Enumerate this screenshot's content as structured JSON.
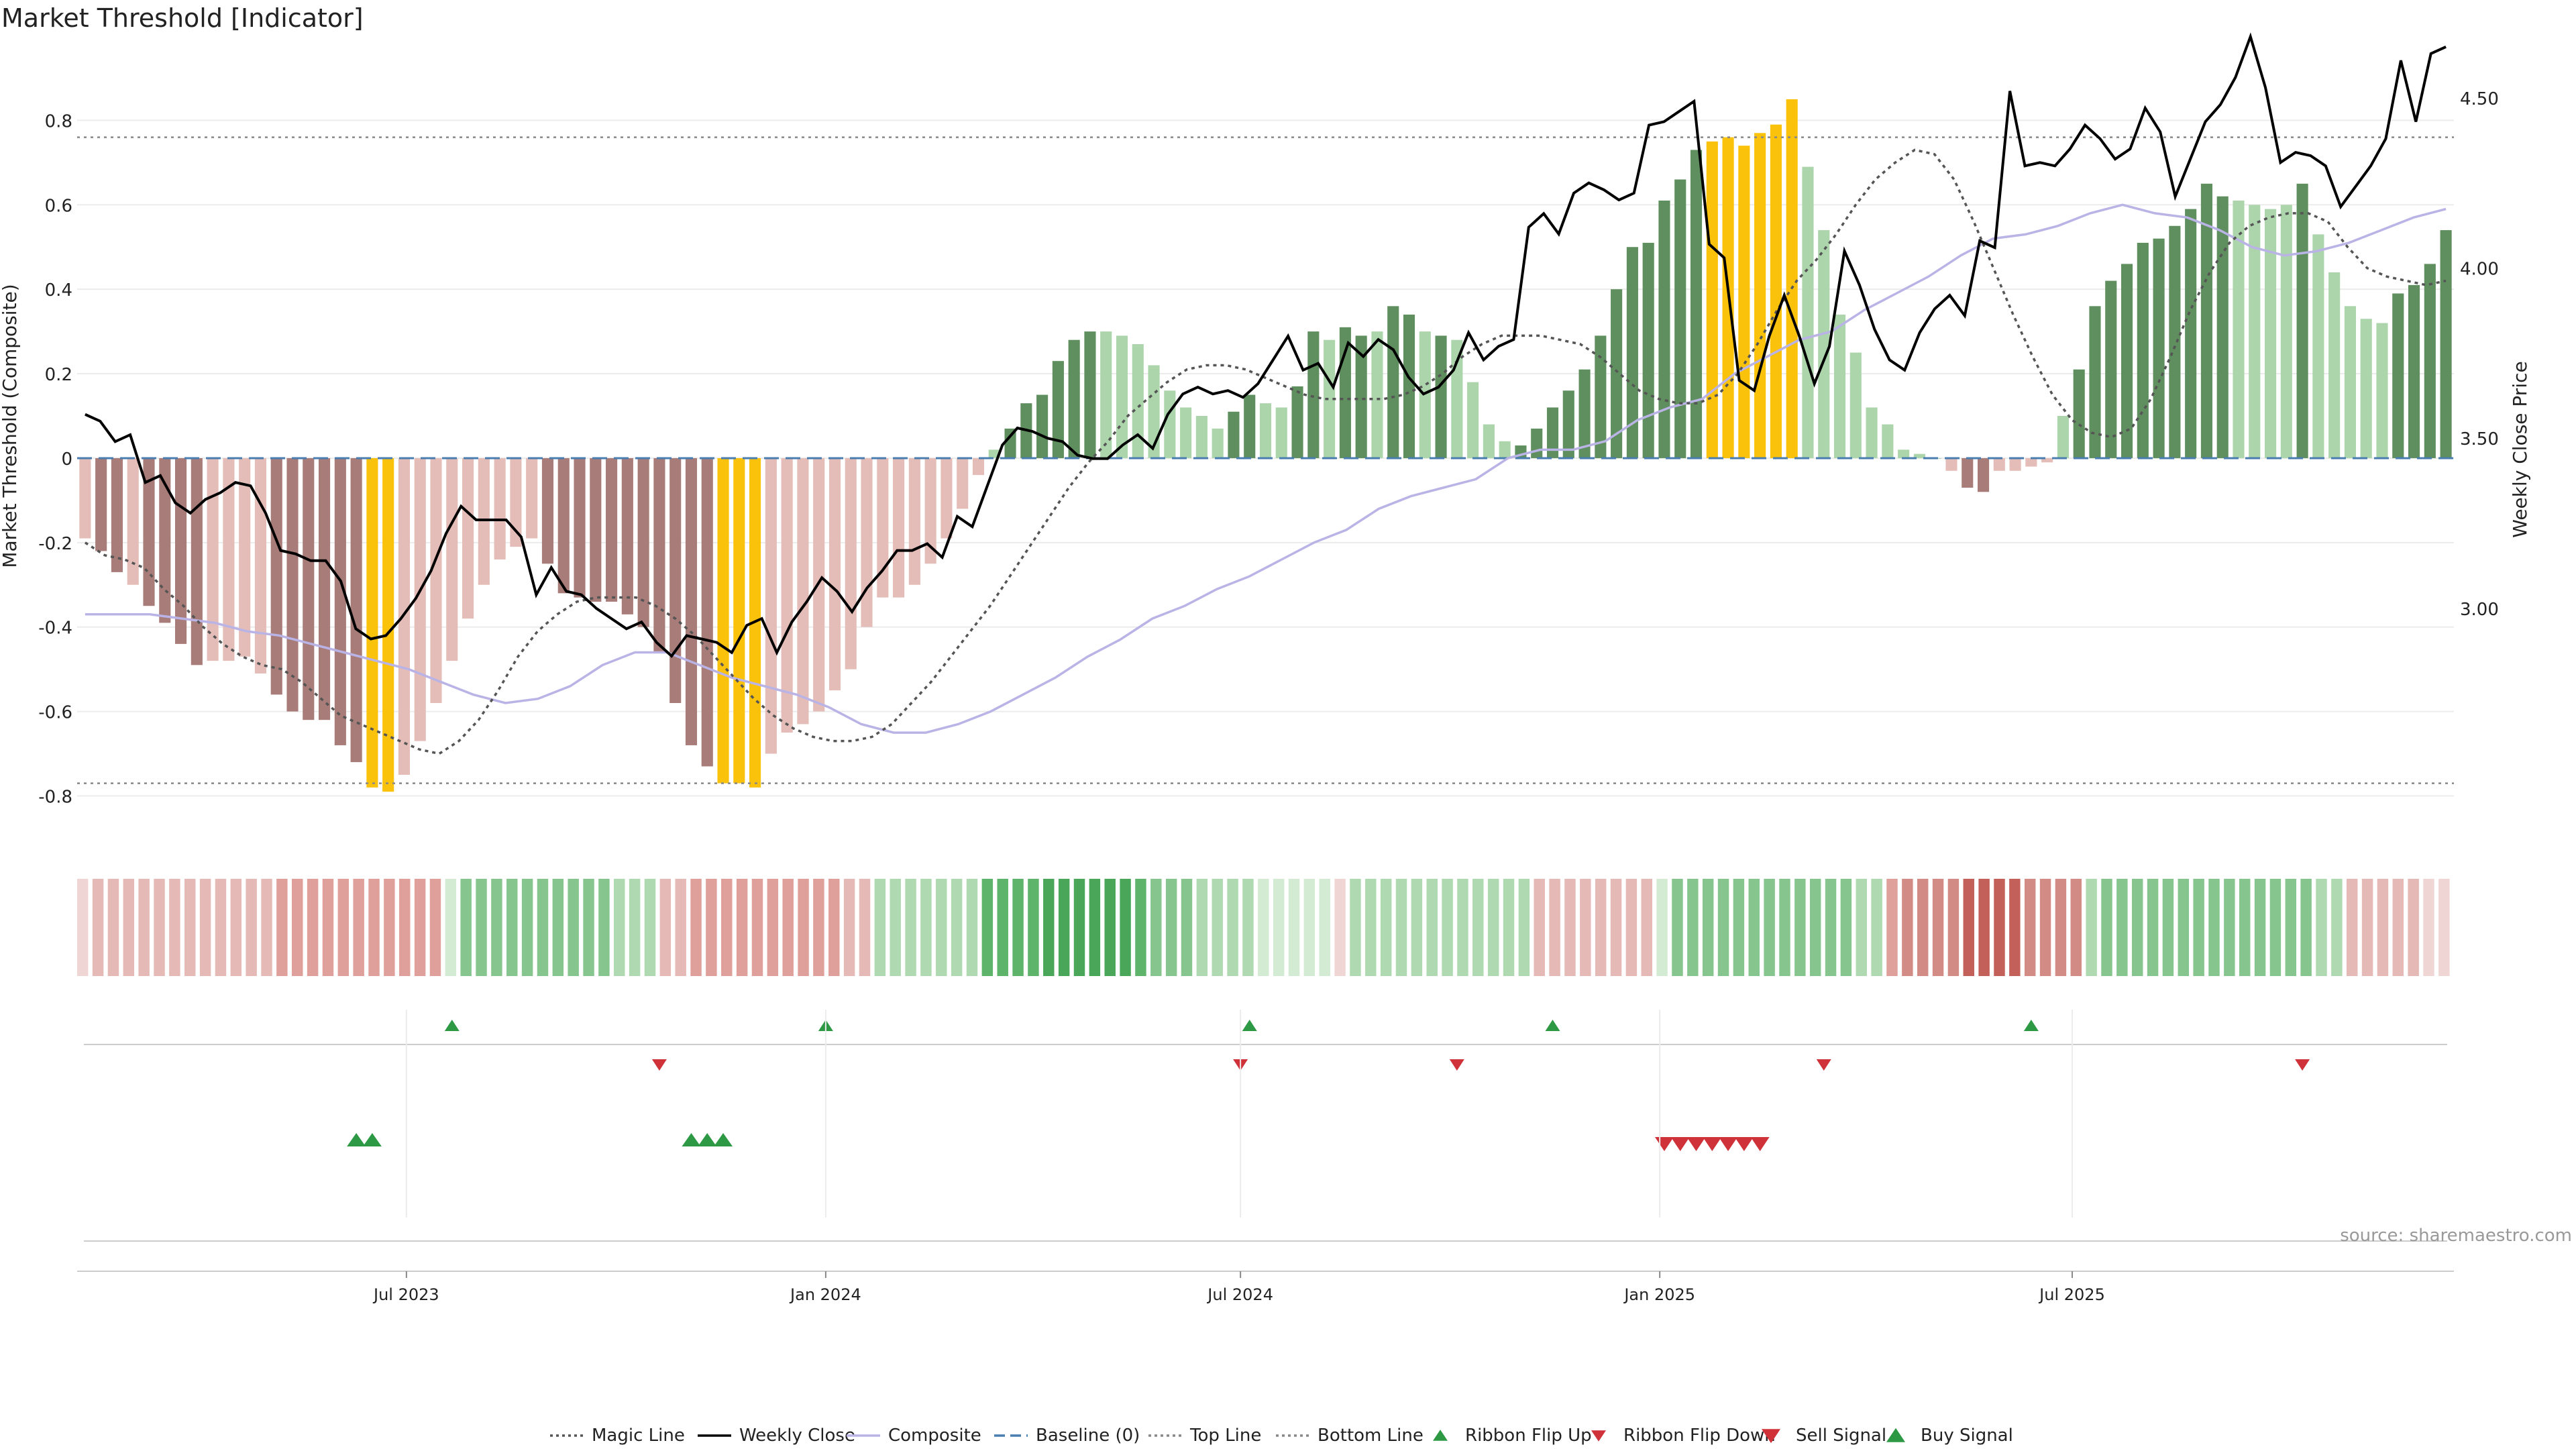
{
  "chart_data": {
    "type": "bar",
    "title": "Market Threshold [Indicator]",
    "ylabel": "Market Threshold (Composite)",
    "y2label": "Weekly Close Price",
    "source": "source: sharemaestro.com",
    "ylim": [
      -0.92,
      0.95
    ],
    "y2lim": [
      2.3,
      4.62
    ],
    "yticks": [
      "-0.8",
      "-0.6",
      "-0.4",
      "-0.2",
      "0",
      "0.2",
      "0.4",
      "0.6",
      "0.8"
    ],
    "y2ticks": [
      "3.00",
      "3.50",
      "4.00",
      "4.50"
    ],
    "xticks": [
      {
        "label": "Jul 2023",
        "date": "2023-07-01"
      },
      {
        "label": "Jan 2024",
        "date": "2024-01-01"
      },
      {
        "label": "Jul 2024",
        "date": "2024-07-01"
      },
      {
        "label": "Jan 2025",
        "date": "2025-01-01"
      },
      {
        "label": "Jul 2025",
        "date": "2025-07-01"
      }
    ],
    "start_date": "2023-02-10",
    "top_line": 0.76,
    "bottom_line": -0.77,
    "baseline": 0,
    "grid": true,
    "legend_position": "bottom",
    "bars": [
      -0.19,
      -0.22,
      -0.27,
      -0.3,
      -0.35,
      -0.39,
      -0.44,
      -0.49,
      -0.48,
      -0.48,
      -0.47,
      -0.51,
      -0.56,
      -0.6,
      -0.62,
      -0.62,
      -0.68,
      -0.72,
      -0.78,
      -0.79,
      -0.75,
      -0.67,
      -0.58,
      -0.48,
      -0.38,
      -0.3,
      -0.24,
      -0.21,
      -0.19,
      -0.25,
      -0.32,
      -0.33,
      -0.34,
      -0.34,
      -0.37,
      -0.4,
      -0.46,
      -0.58,
      -0.68,
      -0.73,
      -0.77,
      -0.77,
      -0.78,
      -0.7,
      -0.65,
      -0.63,
      -0.6,
      -0.55,
      -0.5,
      -0.4,
      -0.33,
      -0.33,
      -0.3,
      -0.25,
      -0.19,
      -0.12,
      -0.04,
      0.02,
      0.07,
      0.13,
      0.15,
      0.23,
      0.28,
      0.3,
      0.3,
      0.29,
      0.27,
      0.22,
      0.16,
      0.12,
      0.1,
      0.07,
      0.11,
      0.15,
      0.13,
      0.12,
      0.17,
      0.3,
      0.28,
      0.31,
      0.29,
      0.3,
      0.36,
      0.34,
      0.3,
      0.29,
      0.28,
      0.18,
      0.08,
      0.04,
      0.03,
      0.07,
      0.12,
      0.16,
      0.21,
      0.29,
      0.4,
      0.5,
      0.51,
      0.61,
      0.66,
      0.73,
      0.75,
      0.76,
      0.74,
      0.77,
      0.79,
      0.85,
      0.69,
      0.54,
      0.34,
      0.25,
      0.12,
      0.08,
      0.02,
      0.01,
      0.0,
      -0.03,
      -0.07,
      -0.08,
      -0.03,
      -0.03,
      -0.02,
      -0.01,
      0.1,
      0.21,
      0.36,
      0.42,
      0.46,
      0.51,
      0.52,
      0.55,
      0.59,
      0.65,
      0.62,
      0.61,
      0.6,
      0.59,
      0.6,
      0.65,
      0.53,
      0.44,
      0.36,
      0.33,
      0.32,
      0.39,
      0.41,
      0.46,
      0.54
    ],
    "bar_colors": [
      "#e5bdb8",
      "#a87c78",
      "#a87c78",
      "#e5bdb8",
      "#a87c78",
      "#a87c78",
      "#a87c78",
      "#a87c78",
      "#e5bdb8",
      "#e5bdb8",
      "#e5bdb8",
      "#e5bdb8",
      "#a87c78",
      "#a87c78",
      "#a87c78",
      "#a87c78",
      "#a87c78",
      "#a87c78",
      "#fac20a",
      "#fac20a",
      "#e5bdb8",
      "#e5bdb8",
      "#e5bdb8",
      "#e5bdb8",
      "#e5bdb8",
      "#e5bdb8",
      "#e5bdb8",
      "#e5bdb8",
      "#e5bdb8",
      "#a87c78",
      "#a87c78",
      "#a87c78",
      "#a87c78",
      "#a87c78",
      "#a87c78",
      "#a87c78",
      "#a87c78",
      "#a87c78",
      "#a87c78",
      "#a87c78",
      "#fac20a",
      "#fac20a",
      "#fac20a",
      "#e5bdb8",
      "#e5bdb8",
      "#e5bdb8",
      "#e5bdb8",
      "#e5bdb8",
      "#e5bdb8",
      "#e5bdb8",
      "#e5bdb8",
      "#e5bdb8",
      "#e5bdb8",
      "#e5bdb8",
      "#e5bdb8",
      "#e5bdb8",
      "#e5bdb8",
      "#acd5ac",
      "#5f8f5f",
      "#5f8f5f",
      "#5f8f5f",
      "#5f8f5f",
      "#5f8f5f",
      "#5f8f5f",
      "#acd5ac",
      "#acd5ac",
      "#acd5ac",
      "#acd5ac",
      "#acd5ac",
      "#acd5ac",
      "#acd5ac",
      "#acd5ac",
      "#5f8f5f",
      "#5f8f5f",
      "#acd5ac",
      "#acd5ac",
      "#5f8f5f",
      "#5f8f5f",
      "#acd5ac",
      "#5f8f5f",
      "#5f8f5f",
      "#acd5ac",
      "#5f8f5f",
      "#5f8f5f",
      "#acd5ac",
      "#5f8f5f",
      "#acd5ac",
      "#acd5ac",
      "#acd5ac",
      "#acd5ac",
      "#5f8f5f",
      "#5f8f5f",
      "#5f8f5f",
      "#5f8f5f",
      "#5f8f5f",
      "#5f8f5f",
      "#5f8f5f",
      "#5f8f5f",
      "#5f8f5f",
      "#5f8f5f",
      "#5f8f5f",
      "#5f8f5f",
      "#fac20a",
      "#fac20a",
      "#fac20a",
      "#fac20a",
      "#fac20a",
      "#fac20a",
      "#acd5ac",
      "#acd5ac",
      "#acd5ac",
      "#acd5ac",
      "#acd5ac",
      "#acd5ac",
      "#acd5ac",
      "#acd5ac",
      "#acd5ac",
      "#e5bdb8",
      "#a87c78",
      "#a87c78",
      "#e5bdb8",
      "#e5bdb8",
      "#e5bdb8",
      "#e5bdb8",
      "#acd5ac",
      "#5f8f5f",
      "#5f8f5f",
      "#5f8f5f",
      "#5f8f5f",
      "#5f8f5f",
      "#5f8f5f",
      "#5f8f5f",
      "#5f8f5f",
      "#5f8f5f",
      "#5f8f5f",
      "#acd5ac",
      "#acd5ac",
      "#acd5ac",
      "#acd5ac",
      "#5f8f5f",
      "#acd5ac",
      "#acd5ac",
      "#acd5ac",
      "#acd5ac",
      "#acd5ac",
      "#5f8f5f",
      "#5f8f5f",
      "#5f8f5f",
      "#5f8f5f"
    ],
    "weekly_close": [
      3.57,
      3.55,
      3.49,
      3.51,
      3.37,
      3.39,
      3.31,
      3.28,
      3.32,
      3.34,
      3.37,
      3.36,
      3.28,
      3.17,
      3.16,
      3.14,
      3.14,
      3.08,
      2.94,
      2.91,
      2.92,
      2.97,
      3.03,
      3.11,
      3.22,
      3.3,
      3.26,
      3.26,
      3.26,
      3.21,
      3.04,
      3.12,
      3.05,
      3.04,
      3.0,
      2.97,
      2.94,
      2.96,
      2.9,
      2.86,
      2.92,
      2.91,
      2.9,
      2.87,
      2.95,
      2.97,
      2.87,
      2.96,
      3.02,
      3.09,
      3.05,
      2.99,
      3.06,
      3.11,
      3.17,
      3.17,
      3.19,
      3.15,
      3.27,
      3.24,
      3.36,
      3.48,
      3.53,
      3.52,
      3.5,
      3.49,
      3.45,
      3.44,
      3.44,
      3.48,
      3.51,
      3.47,
      3.57,
      3.63,
      3.65,
      3.63,
      3.64,
      3.62,
      3.66,
      3.73,
      3.8,
      3.7,
      3.72,
      3.65,
      3.78,
      3.74,
      3.79,
      3.76,
      3.68,
      3.63,
      3.65,
      3.7,
      3.81,
      3.73,
      3.77,
      3.79,
      4.12,
      4.16,
      4.1,
      4.22,
      4.25,
      4.23,
      4.2,
      4.22,
      4.42,
      4.43,
      4.46,
      4.49,
      4.07,
      4.03,
      3.67,
      3.64,
      3.8,
      3.92,
      3.8,
      3.66,
      3.77,
      4.05,
      3.95,
      3.82,
      3.73,
      3.7,
      3.81,
      3.88,
      3.92,
      3.86,
      4.08,
      4.06,
      4.52,
      4.3,
      4.31,
      4.3,
      4.35,
      4.42,
      4.38,
      4.32,
      4.35,
      4.47,
      4.4,
      4.21,
      4.32,
      4.43,
      4.48,
      4.56,
      4.68,
      4.53,
      4.31,
      4.34,
      4.33,
      4.3,
      4.18,
      4.24,
      4.3,
      4.38,
      4.61,
      4.43,
      4.63,
      4.65
    ],
    "magic_line": [
      -0.2,
      -0.23,
      -0.24,
      -0.26,
      -0.31,
      -0.35,
      -0.4,
      -0.44,
      -0.47,
      -0.49,
      -0.5,
      -0.53,
      -0.57,
      -0.61,
      -0.63,
      -0.65,
      -0.67,
      -0.69,
      -0.7,
      -0.67,
      -0.62,
      -0.55,
      -0.47,
      -0.41,
      -0.37,
      -0.34,
      -0.33,
      -0.33,
      -0.33,
      -0.35,
      -0.38,
      -0.42,
      -0.47,
      -0.52,
      -0.57,
      -0.61,
      -0.64,
      -0.66,
      -0.67,
      -0.67,
      -0.66,
      -0.63,
      -0.58,
      -0.53,
      -0.47,
      -0.41,
      -0.35,
      -0.28,
      -0.21,
      -0.14,
      -0.07,
      -0.01,
      0.04,
      0.1,
      0.14,
      0.18,
      0.21,
      0.22,
      0.22,
      0.21,
      0.19,
      0.17,
      0.15,
      0.14,
      0.14,
      0.14,
      0.14,
      0.15,
      0.17,
      0.2,
      0.24,
      0.27,
      0.29,
      0.29,
      0.29,
      0.28,
      0.27,
      0.24,
      0.2,
      0.16,
      0.14,
      0.13,
      0.13,
      0.15,
      0.2,
      0.27,
      0.35,
      0.42,
      0.47,
      0.53,
      0.6,
      0.66,
      0.7,
      0.73,
      0.72,
      0.66,
      0.56,
      0.45,
      0.34,
      0.24,
      0.15,
      0.09,
      0.06,
      0.05,
      0.07,
      0.14,
      0.24,
      0.35,
      0.44,
      0.51,
      0.55,
      0.57,
      0.58,
      0.58,
      0.56,
      0.5,
      0.45,
      0.43,
      0.42,
      0.41,
      0.42
    ],
    "composite": [
      -0.37,
      -0.37,
      -0.37,
      -0.38,
      -0.39,
      -0.41,
      -0.42,
      -0.44,
      -0.46,
      -0.48,
      -0.5,
      -0.53,
      -0.56,
      -0.58,
      -0.57,
      -0.54,
      -0.49,
      -0.46,
      -0.46,
      -0.49,
      -0.52,
      -0.54,
      -0.56,
      -0.59,
      -0.63,
      -0.65,
      -0.65,
      -0.63,
      -0.6,
      -0.56,
      -0.52,
      -0.47,
      -0.43,
      -0.38,
      -0.35,
      -0.31,
      -0.28,
      -0.24,
      -0.2,
      -0.17,
      -0.12,
      -0.09,
      -0.07,
      -0.05,
      0.0,
      0.02,
      0.02,
      0.04,
      0.09,
      0.12,
      0.14,
      0.2,
      0.24,
      0.28,
      0.3,
      0.35,
      0.39,
      0.43,
      0.48,
      0.52,
      0.53,
      0.55,
      0.58,
      0.6,
      0.58,
      0.57,
      0.54,
      0.5,
      0.48,
      0.49,
      0.51,
      0.54,
      0.57,
      0.59
    ]
  },
  "legend": [
    {
      "label": "Magic Line",
      "kind": "line",
      "dash": "dotted",
      "color": "#555555"
    },
    {
      "label": "Weekly Close",
      "kind": "line",
      "dash": "solid",
      "color": "#000000"
    },
    {
      "label": "Composite",
      "kind": "line",
      "dash": "solid",
      "color": "#b9b3e6"
    },
    {
      "label": "Baseline (0)",
      "kind": "line",
      "dash": "dashed",
      "color": "#4a7eb0"
    },
    {
      "label": "Top Line",
      "kind": "line",
      "dash": "dotted",
      "color": "#888888"
    },
    {
      "label": "Bottom Line",
      "kind": "line",
      "dash": "dotted",
      "color": "#888888"
    },
    {
      "label": "Ribbon Flip Up",
      "kind": "marker",
      "shape": "triangle-up",
      "color": "#2e9944"
    },
    {
      "label": "Ribbon Flip Down",
      "kind": "marker",
      "shape": "triangle-down",
      "color": "#d0323a"
    },
    {
      "label": "Sell Signal",
      "kind": "marker",
      "shape": "triangle-down-large",
      "color": "#d0323a"
    },
    {
      "label": "Buy Signal",
      "kind": "marker",
      "shape": "triangle-up-large",
      "color": "#2e9944"
    }
  ],
  "ribbon": {
    "colors": [
      "#efd6d5",
      "#e5b9b6",
      "#e5b9b6",
      "#e5b9b6",
      "#e5b9b6",
      "#e5b9b6",
      "#e5b9b6",
      "#e5b9b6",
      "#e5b9b6",
      "#e5b9b6",
      "#e5b9b6",
      "#e5b9b6",
      "#e5b9b6",
      "#df9f9b",
      "#df9f9b",
      "#df9f9b",
      "#df9f9b",
      "#df9f9b",
      "#df9f9b",
      "#df9f9b",
      "#df9f9b",
      "#df9f9b",
      "#df9f9b",
      "#df9f9b",
      "#d3ebd3",
      "#86c68e",
      "#86c68e",
      "#86c68e",
      "#86c68e",
      "#86c68e",
      "#86c68e",
      "#86c68e",
      "#86c68e",
      "#86c68e",
      "#86c68e",
      "#aed9b1",
      "#aed9b1",
      "#aed9b1",
      "#e5b9b6",
      "#e5b9b6",
      "#df9f9b",
      "#df9f9b",
      "#df9f9b",
      "#df9f9b",
      "#df9f9b",
      "#df9f9b",
      "#df9f9b",
      "#df9f9b",
      "#df9f9b",
      "#df9f9b",
      "#e5b9b6",
      "#e5b9b6",
      "#aed9b1",
      "#aed9b1",
      "#aed9b1",
      "#aed9b1",
      "#aed9b1",
      "#aed9b1",
      "#aed9b1",
      "#5fb46b",
      "#5fb46b",
      "#5fb46b",
      "#5fb46b",
      "#4aa659",
      "#4aa659",
      "#4aa659",
      "#4aa659",
      "#4aa659",
      "#4aa659",
      "#5fb46b",
      "#86c68e",
      "#86c68e",
      "#86c68e",
      "#aed9b1",
      "#aed9b1",
      "#aed9b1",
      "#aed9b1",
      "#d3ebd3",
      "#d3ebd3",
      "#d3ebd3",
      "#d3ebd3",
      "#d3ebd3",
      "#efd6d5",
      "#aed9b1",
      "#aed9b1",
      "#aed9b1",
      "#aed9b1",
      "#aed9b1",
      "#aed9b1",
      "#aed9b1",
      "#aed9b1",
      "#aed9b1",
      "#aed9b1",
      "#aed9b1",
      "#aed9b1",
      "#e5b9b6",
      "#e5b9b6",
      "#e5b9b6",
      "#e5b9b6",
      "#e5b9b6",
      "#e5b9b6",
      "#e5b9b6",
      "#e5b9b6",
      "#d3ebd3",
      "#86c68e",
      "#86c68e",
      "#86c68e",
      "#86c68e",
      "#86c68e",
      "#86c68e",
      "#86c68e",
      "#86c68e",
      "#86c68e",
      "#86c68e",
      "#86c68e",
      "#86c68e",
      "#aed9b1",
      "#aed9b1",
      "#df9f9b",
      "#d38b86",
      "#d38b86",
      "#d38b86",
      "#d38b86",
      "#c4605a",
      "#c4605a",
      "#c4605a",
      "#c4605a",
      "#d38b86",
      "#d38b86",
      "#d38b86",
      "#d38b86",
      "#aed9b1",
      "#86c68e",
      "#86c68e",
      "#86c68e",
      "#86c68e",
      "#86c68e",
      "#86c68e",
      "#86c68e",
      "#86c68e",
      "#86c68e",
      "#86c68e",
      "#86c68e",
      "#86c68e",
      "#86c68e",
      "#86c68e",
      "#aed9b1",
      "#aed9b1",
      "#e5b9b6",
      "#e5b9b6",
      "#e5b9b6",
      "#e5b9b6",
      "#e5b9b6",
      "#efd6d5",
      "#efd6d5"
    ]
  },
  "flips_up": [
    "2023-07-21",
    "2024-01-01",
    "2024-07-05",
    "2024-11-15",
    "2025-06-13"
  ],
  "flips_down": [
    "2023-10-20",
    "2024-07-01",
    "2024-10-04",
    "2025-03-14",
    "2025-10-10"
  ],
  "buy_signals": [
    "2023-06-09",
    "2023-06-16",
    "2023-11-03",
    "2023-11-10",
    "2023-11-17"
  ],
  "sell_signals": [
    "2025-01-03",
    "2025-01-10",
    "2025-01-17",
    "2025-01-24",
    "2025-01-31",
    "2025-02-07",
    "2025-02-14"
  ]
}
